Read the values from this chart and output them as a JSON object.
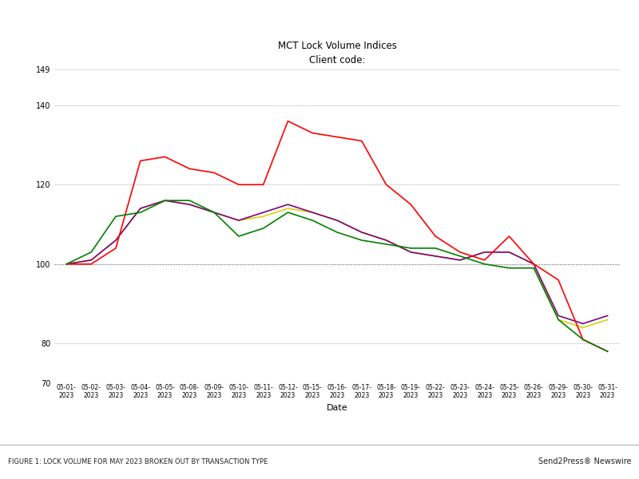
{
  "title": "MCT Lock Volume Indices",
  "subtitle": "Client code:",
  "xlabel": "Date",
  "ylim": [
    70,
    149
  ],
  "yticks": [
    70,
    80,
    100,
    120,
    140,
    149
  ],
  "background_color": "#ffffff",
  "dates": [
    "05-01-\n2023",
    "05-02-\n2023",
    "05-03-\n2023",
    "05-04-\n2023",
    "05-05-\n2023",
    "05-08-\n2023",
    "05-09-\n2023",
    "05-10-\n2023",
    "05-11-\n2023",
    "05-12-\n2023",
    "05-15-\n2023",
    "05-16-\n2023",
    "05-17-\n2023",
    "05-18-\n2023",
    "05-19-\n2023",
    "05-22-\n2023",
    "05-23-\n2023",
    "05-24-\n2023",
    "05-25-\n2023",
    "05-26-\n2023",
    "05-29-\n2023",
    "05-30-\n2023",
    "05-31-\n2023"
  ],
  "total": [
    100,
    101,
    106,
    114,
    116,
    115,
    113,
    111,
    112,
    114,
    113,
    111,
    108,
    106,
    103,
    102,
    101,
    103,
    103,
    100,
    86,
    84,
    86
  ],
  "purchase": [
    100,
    101,
    106,
    114,
    116,
    115,
    113,
    111,
    113,
    115,
    113,
    111,
    108,
    106,
    103,
    102,
    101,
    103,
    103,
    100,
    87,
    85,
    87
  ],
  "rate_term": [
    100,
    100,
    104,
    126,
    127,
    124,
    123,
    120,
    120,
    136,
    133,
    132,
    131,
    120,
    115,
    107,
    103,
    101,
    107,
    100,
    96,
    81,
    78
  ],
  "cash_out": [
    100,
    103,
    112,
    113,
    116,
    116,
    113,
    107,
    109,
    113,
    111,
    108,
    106,
    105,
    104,
    104,
    102,
    100,
    99,
    99,
    86,
    81,
    78
  ],
  "total_color": "#d4d400",
  "purchase_color": "#800080",
  "rate_term_color": "#ff0000",
  "cash_out_color": "#008000",
  "line_width": 1.2,
  "footer_left": "FIGURE 1: LOCK VOLUME FOR MAY 2023 BROKEN OUT BY TRANSACTION TYPE",
  "footer_right": "Send2Press® Newswire"
}
